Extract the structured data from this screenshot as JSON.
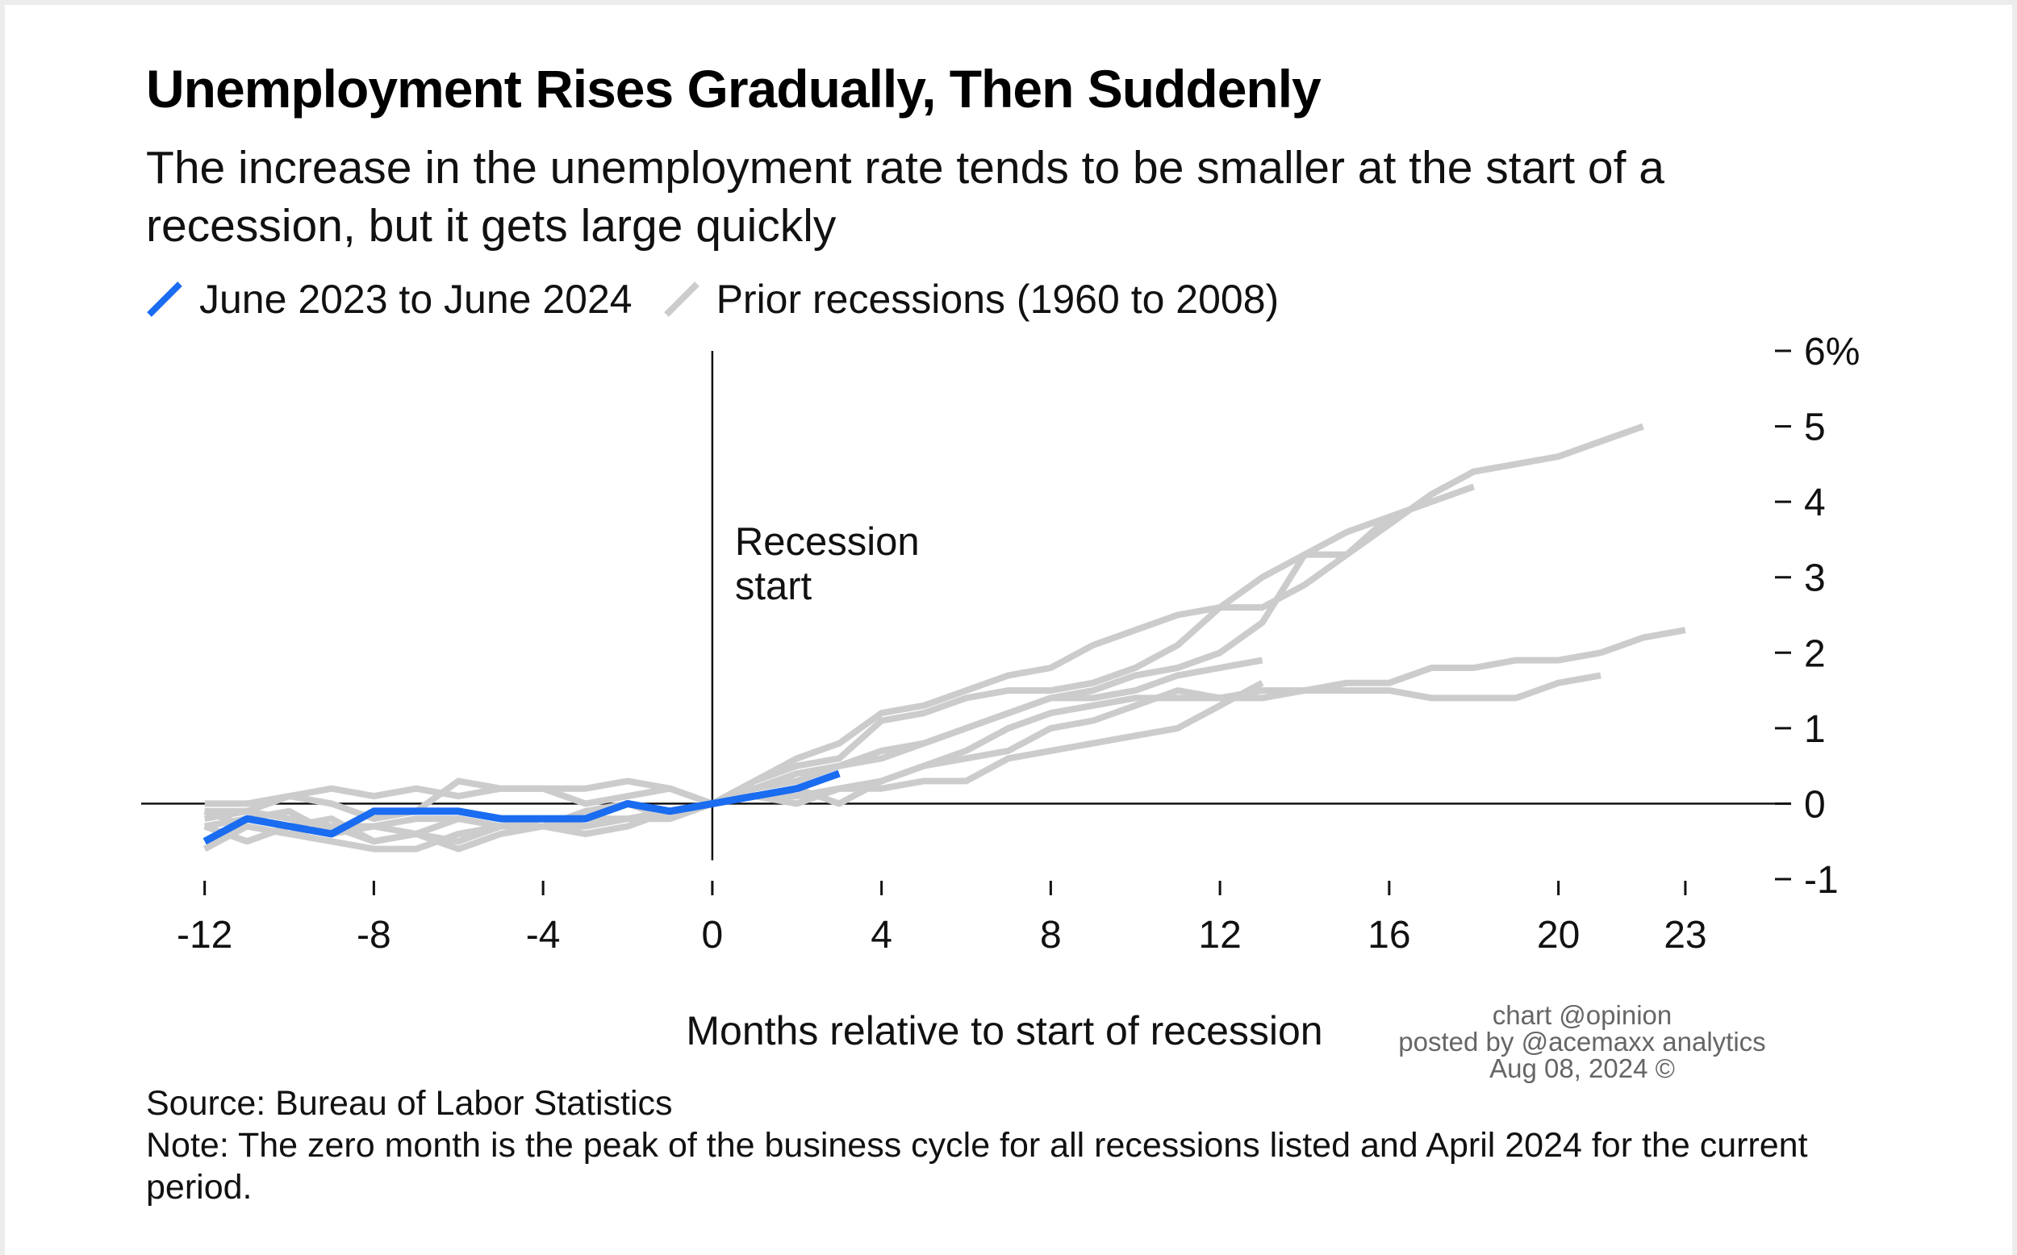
{
  "header": {
    "title": "Unemployment Rises Gradually, Then Suddenly",
    "subtitle": "The increase in the unemployment rate tends to be smaller at the start of a recession, but it gets large quickly"
  },
  "legend": {
    "items": [
      {
        "label": "June 2023 to June 2024",
        "color": "#1a6cf0"
      },
      {
        "label": "Prior recessions (1960 to 2008)",
        "color": "#cccccc"
      }
    ]
  },
  "chart_data": {
    "type": "line",
    "xlabel": "Months relative to start of recession",
    "ylabel": "",
    "xlim": [
      -13.5,
      25.5
    ],
    "ylim": [
      -1,
      6
    ],
    "x_ticks": [
      -12,
      -8,
      -4,
      0,
      4,
      8,
      12,
      16,
      20,
      23
    ],
    "y_ticks": [
      -1,
      0,
      1,
      2,
      3,
      4,
      5,
      6
    ],
    "y_tick_labels": [
      "-1",
      "0",
      "1",
      "2",
      "3",
      "4",
      "5",
      "6%"
    ],
    "annotation": "Recession\nstart",
    "series": [
      {
        "group": "Prior recessions (1960 to 2008)",
        "color": "#cccccc",
        "x": [
          -12,
          -11,
          -10,
          -9,
          -8,
          -7,
          -6,
          -5,
          -4,
          -3,
          -2,
          -1,
          0,
          1,
          2,
          3,
          4,
          5,
          6,
          7,
          8,
          9,
          10,
          11,
          12,
          13,
          14,
          15,
          16,
          17,
          18,
          19,
          20,
          21,
          22
        ],
        "y": [
          -0.1,
          -0.1,
          0.1,
          0.2,
          0.1,
          0.2,
          0.1,
          0.2,
          0.2,
          0,
          0.1,
          0.2,
          0,
          0.3,
          0.6,
          0.8,
          1.2,
          1.3,
          1.5,
          1.7,
          1.8,
          2.1,
          2.3,
          2.5,
          2.6,
          2.6,
          2.9,
          3.3,
          3.7,
          4.1,
          4.4,
          4.5,
          4.6,
          4.8,
          5.0
        ]
      },
      {
        "group": "Prior recessions (1960 to 2008)",
        "color": "#cccccc",
        "x": [
          -12,
          -11,
          -10,
          -9,
          -8,
          -7,
          -6,
          -5,
          -4,
          -3,
          -2,
          -1,
          0,
          1,
          2,
          3,
          4,
          5,
          6,
          7,
          8,
          9,
          10,
          11,
          12,
          13,
          14,
          15,
          16,
          17,
          18
        ],
        "y": [
          0,
          0,
          0.1,
          0,
          -0.2,
          -0.1,
          0.3,
          0.2,
          0.2,
          0.2,
          0.3,
          0.2,
          0,
          0.2,
          0.4,
          0.5,
          0.7,
          0.8,
          1.0,
          1.2,
          1.4,
          1.5,
          1.7,
          1.8,
          2.0,
          2.4,
          3.3,
          3.3,
          3.8,
          4.0,
          4.2
        ]
      },
      {
        "group": "Prior recessions (1960 to 2008)",
        "color": "#cccccc",
        "x": [
          -12,
          -11,
          -10,
          -9,
          -8,
          -7,
          -6,
          -5,
          -4,
          -3,
          -2,
          -1,
          0,
          1,
          2,
          3,
          4,
          5,
          6,
          7,
          8,
          9,
          10,
          11,
          12,
          13,
          14,
          15,
          16
        ],
        "y": [
          -0.3,
          -0.2,
          -0.1,
          -0.4,
          -0.3,
          -0.4,
          -0.2,
          -0.3,
          -0.3,
          -0.1,
          0,
          -0.2,
          0,
          0.3,
          0.5,
          0.6,
          1.1,
          1.2,
          1.4,
          1.5,
          1.5,
          1.6,
          1.8,
          2.1,
          2.6,
          3.0,
          3.3,
          3.6,
          3.8
        ]
      },
      {
        "group": "Prior recessions (1960 to 2008)",
        "color": "#cccccc",
        "x": [
          -12,
          -11,
          -10,
          -9,
          -8,
          -7,
          -6,
          -5,
          -4,
          -3,
          -2,
          -1,
          0,
          1,
          2,
          3,
          4,
          5,
          6,
          7,
          8,
          9,
          10,
          11,
          12,
          13
        ],
        "y": [
          -0.3,
          -0.5,
          -0.3,
          -0.2,
          -0.5,
          -0.4,
          -0.6,
          -0.4,
          -0.3,
          -0.4,
          -0.3,
          -0.1,
          0,
          0.2,
          0.3,
          0.5,
          0.6,
          0.8,
          1.0,
          1.2,
          1.4,
          1.4,
          1.5,
          1.7,
          1.8,
          1.9
        ]
      },
      {
        "group": "Prior recessions (1960 to 2008)",
        "color": "#cccccc",
        "x": [
          -12,
          -11,
          -10,
          -9,
          -8,
          -7,
          -6,
          -5,
          -4,
          -3,
          -2,
          -1,
          0,
          1,
          2,
          3,
          4,
          5,
          6,
          7,
          8,
          9,
          10,
          11,
          12,
          13,
          14,
          15,
          16,
          17,
          18,
          19,
          20,
          21,
          22,
          23
        ],
        "y": [
          -0.2,
          -0.1,
          -0.2,
          -0.3,
          -0.3,
          -0.2,
          -0.2,
          -0.3,
          -0.2,
          -0.3,
          -0.2,
          -0.2,
          0,
          0.1,
          0,
          0.2,
          0.3,
          0.5,
          0.7,
          1.0,
          1.2,
          1.3,
          1.4,
          1.4,
          1.4,
          1.5,
          1.5,
          1.6,
          1.6,
          1.8,
          1.8,
          1.9,
          1.9,
          2.0,
          2.2,
          2.3
        ]
      },
      {
        "group": "Prior recessions (1960 to 2008)",
        "color": "#cccccc",
        "x": [
          -12,
          -11,
          -10,
          -9,
          -8,
          -7,
          -6,
          -5,
          -4,
          -3,
          -2,
          -1,
          0,
          1,
          2,
          3,
          4,
          5,
          6,
          7,
          8,
          9,
          10,
          11,
          12,
          13,
          14,
          15,
          16,
          17,
          18,
          19,
          20,
          21
        ],
        "y": [
          -0.1,
          -0.3,
          -0.4,
          -0.3,
          -0.5,
          -0.4,
          -0.5,
          -0.3,
          -0.3,
          -0.3,
          -0.2,
          -0.1,
          0,
          0.1,
          0.2,
          0,
          0.3,
          0.5,
          0.6,
          0.7,
          1.0,
          1.1,
          1.3,
          1.5,
          1.4,
          1.4,
          1.5,
          1.5,
          1.5,
          1.4,
          1.4,
          1.4,
          1.6,
          1.7
        ]
      },
      {
        "group": "Prior recessions (1960 to 2008)",
        "color": "#cccccc",
        "x": [
          -12,
          -11,
          -10,
          -9,
          -8,
          -7,
          -6,
          -5,
          -4,
          -3,
          -2,
          -1,
          0,
          1,
          2,
          3,
          4,
          5,
          6,
          7,
          8,
          9,
          10,
          11,
          12,
          13
        ],
        "y": [
          -0.6,
          -0.3,
          -0.4,
          -0.5,
          -0.6,
          -0.6,
          -0.4,
          -0.3,
          -0.3,
          -0.2,
          -0.2,
          -0.2,
          0,
          0.1,
          0.1,
          0.2,
          0.2,
          0.3,
          0.3,
          0.6,
          0.7,
          0.8,
          0.9,
          1.0,
          1.3,
          1.6
        ]
      },
      {
        "name": "June 2023 to June 2024",
        "color": "#1a6cf0",
        "highlight": true,
        "x": [
          -12,
          -11,
          -10,
          -9,
          -8,
          -7,
          -6,
          -5,
          -4,
          -3,
          -2,
          -1,
          0,
          1,
          2,
          3
        ],
        "y": [
          -0.5,
          -0.2,
          -0.3,
          -0.4,
          -0.1,
          -0.1,
          -0.1,
          -0.2,
          -0.2,
          -0.2,
          0,
          -0.1,
          0,
          0.1,
          0.2,
          0.4
        ]
      }
    ]
  },
  "watermark": {
    "line1": "chart @opinion",
    "line2": "posted by @acemaxx analytics",
    "line3": "Aug 08, 2024 ©"
  },
  "footer": {
    "source": "Source: Bureau of Labor Statistics",
    "note": "Note: The zero month is the peak of the business cycle for all recessions listed and April 2024 for the current period."
  }
}
